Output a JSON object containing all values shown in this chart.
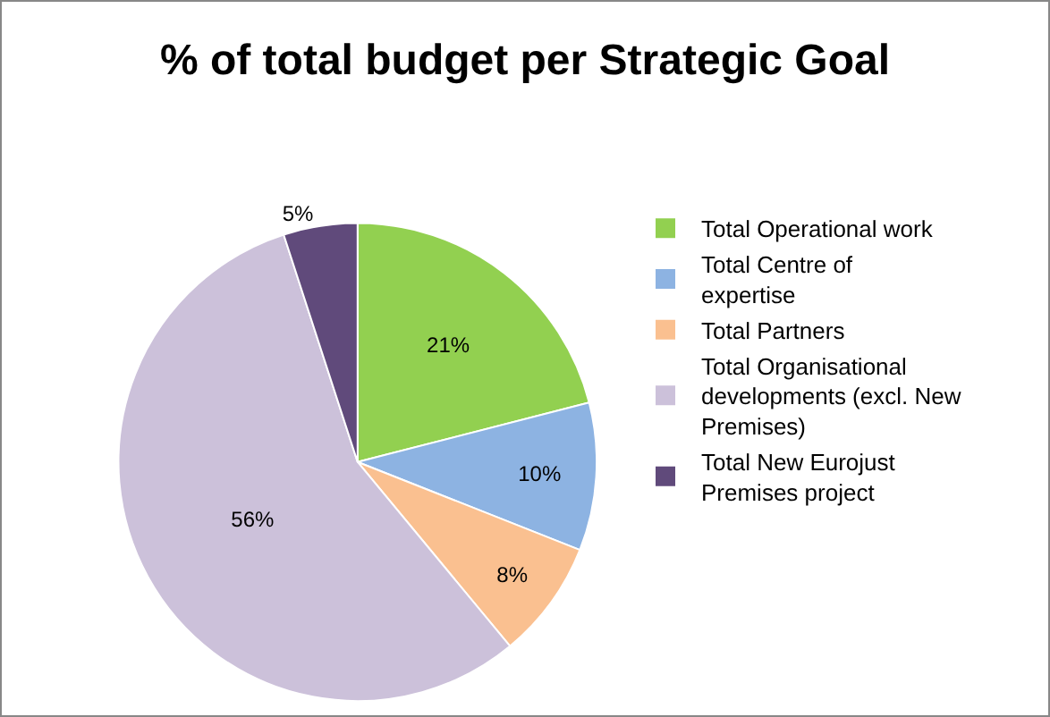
{
  "chart_data": {
    "type": "pie",
    "title": "% of total budget per Strategic Goal",
    "categories": [
      "Total Operational work",
      "Total Centre of expertise",
      "Total Partners",
      "Total Organisational developments (excl. New Premises)",
      "Total New Eurojust Premises project"
    ],
    "values": [
      21,
      10,
      8,
      56,
      5
    ],
    "value_labels": [
      "21%",
      "10%",
      "8%",
      "56%",
      "5%"
    ],
    "colors": [
      "#92d050",
      "#8db3e2",
      "#fac090",
      "#ccc1da",
      "#604a7b"
    ],
    "legend": "right"
  }
}
